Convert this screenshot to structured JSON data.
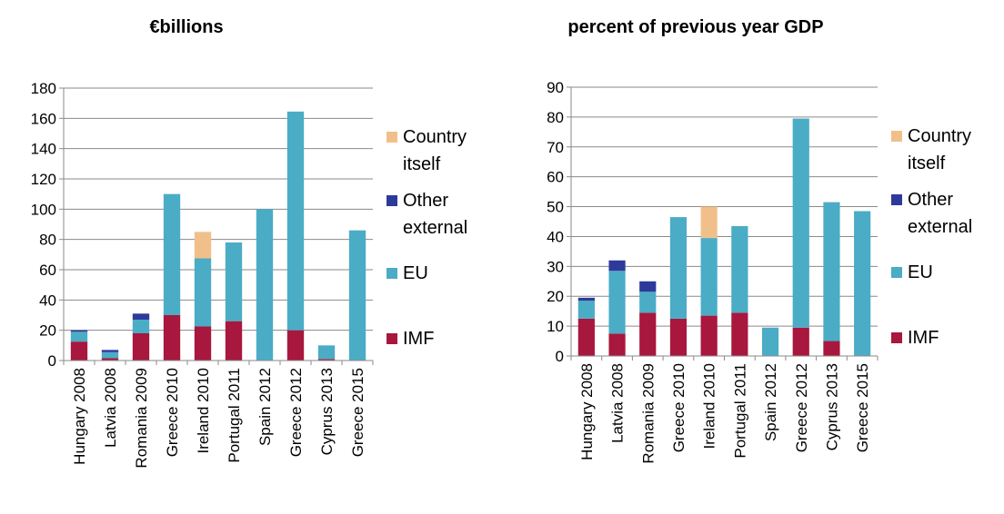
{
  "chart_data": [
    {
      "type": "bar",
      "stacked": true,
      "title": "€billions",
      "categories": [
        "Hungary 2008",
        "Latvia 2008",
        "Romania 2009",
        "Greece 2010",
        "Ireland 2010",
        "Portugal 2011",
        "Spain 2012",
        "Greece 2012",
        "Cyprus 2013",
        "Greece 2015"
      ],
      "series": [
        {
          "name": "IMF",
          "color": "#a8173e",
          "values": [
            12.5,
            1.5,
            18,
            30,
            22.5,
            26,
            0,
            20,
            1,
            0
          ]
        },
        {
          "name": "EU",
          "color": "#4bacc6",
          "values": [
            6.5,
            4,
            9,
            80,
            45,
            52,
            100,
            144.5,
            9,
            86
          ]
        },
        {
          "name": "Other external",
          "color": "#2e3a9a",
          "values": [
            1,
            1.5,
            4,
            0,
            0,
            0,
            0,
            0,
            0,
            0
          ]
        },
        {
          "name": "Country itself",
          "color": "#f1c08a",
          "values": [
            0,
            0,
            0,
            0,
            17.5,
            0,
            0,
            0,
            0,
            0
          ]
        }
      ],
      "ylim": [
        0,
        180
      ],
      "yticks": [
        0,
        20,
        40,
        60,
        80,
        100,
        120,
        140,
        160,
        180
      ],
      "grid": true,
      "legend": "right"
    },
    {
      "type": "bar",
      "stacked": true,
      "title": "percent of previous year GDP",
      "categories": [
        "Hungary 2008",
        "Latvia 2008",
        "Romania 2009",
        "Greece 2010",
        "Ireland 2010",
        "Portugal 2011",
        "Spain 2012",
        "Greece 2012",
        "Cyprus 2013",
        "Greece 2015"
      ],
      "series": [
        {
          "name": "IMF",
          "color": "#a8173e",
          "values": [
            12.5,
            7.5,
            14.5,
            12.5,
            13.5,
            14.5,
            0,
            9.5,
            5,
            0
          ]
        },
        {
          "name": "EU",
          "color": "#4bacc6",
          "values": [
            6,
            21,
            7,
            34,
            26,
            29,
            9.5,
            70,
            46.5,
            48.5
          ]
        },
        {
          "name": "Other external",
          "color": "#2e3a9a",
          "values": [
            1,
            3.5,
            3.5,
            0,
            0,
            0,
            0,
            0,
            0,
            0
          ]
        },
        {
          "name": "Country itself",
          "color": "#f1c08a",
          "values": [
            0,
            0,
            0,
            0,
            10.5,
            0,
            0,
            0,
            0,
            0
          ]
        }
      ],
      "ylim": [
        0,
        90
      ],
      "yticks": [
        0,
        10,
        20,
        30,
        40,
        50,
        60,
        70,
        80,
        90
      ],
      "grid": true,
      "legend": "right"
    }
  ]
}
